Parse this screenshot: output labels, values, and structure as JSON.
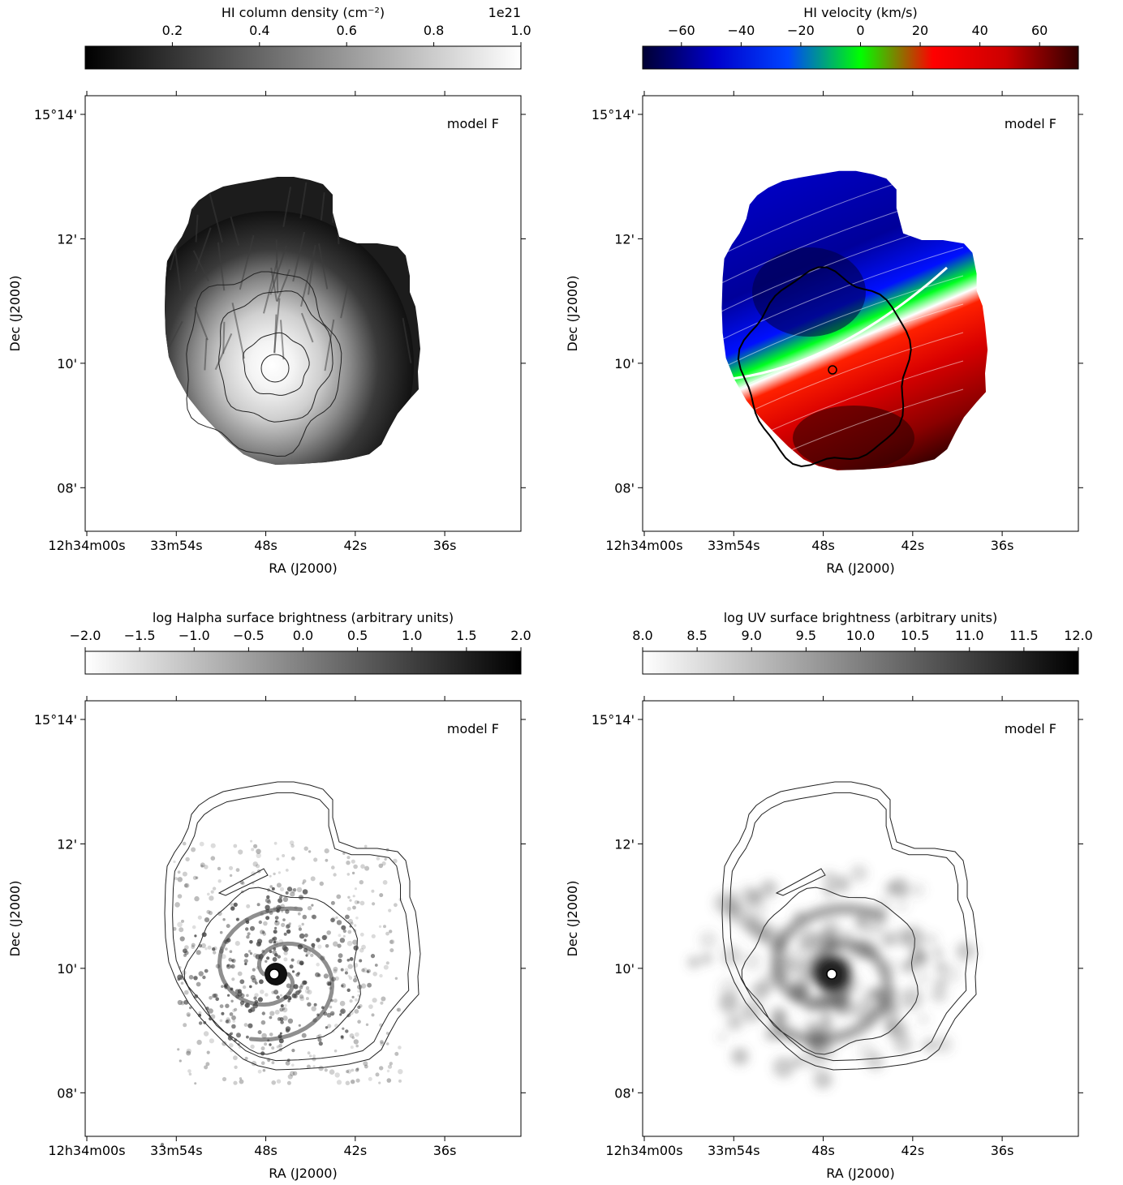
{
  "panels": [
    {
      "id": "hi-density",
      "model_label": "model F",
      "colorbar": {
        "title": "HI column density (cm⁻²)",
        "multiplier": "1e21",
        "ticks": [
          "0.2",
          "0.4",
          "0.6",
          "0.8",
          "1.0"
        ],
        "tick_values": [
          0.2,
          0.4,
          0.6,
          0.8,
          1.0
        ],
        "range": [
          0.0,
          1.0
        ],
        "cmap": "gray",
        "stops": [
          "#000000",
          "#ffffff"
        ]
      },
      "map": "density",
      "circle_marker": false
    },
    {
      "id": "hi-velocity",
      "model_label": "model F",
      "colorbar": {
        "title": "HI velocity (km/s)",
        "multiplier": "",
        "ticks": [
          "−60",
          "−40",
          "−20",
          "0",
          "20",
          "40",
          "60"
        ],
        "tick_values": [
          -60,
          -40,
          -20,
          0,
          20,
          40,
          60
        ],
        "range": [
          -73,
          73
        ],
        "cmap": "velocity",
        "stops": [
          "#000033",
          "#0000cc",
          "#0044ff",
          "#00ff00",
          "#ff0000",
          "#cc0000",
          "#330000"
        ]
      },
      "map": "velocity",
      "circle_marker": true
    },
    {
      "id": "halpha",
      "model_label": "model F",
      "colorbar": {
        "title": "log Halpha surface brightness (arbitrary units)",
        "multiplier": "",
        "ticks": [
          "−2.0",
          "−1.5",
          "−1.0",
          "−0.5",
          "0.0",
          "0.5",
          "1.0",
          "1.5",
          "2.0"
        ],
        "tick_values": [
          -2.0,
          -1.5,
          -1.0,
          -0.5,
          0.0,
          0.5,
          1.0,
          1.5,
          2.0
        ],
        "range": [
          -2.0,
          2.0
        ],
        "cmap": "gray_r",
        "stops": [
          "#ffffff",
          "#000000"
        ]
      },
      "map": "halpha",
      "circle_marker": true
    },
    {
      "id": "uv",
      "model_label": "model F",
      "colorbar": {
        "title": "log UV surface brightness (arbitrary units)",
        "multiplier": "",
        "ticks": [
          "8.0",
          "8.5",
          "9.0",
          "9.5",
          "10.0",
          "10.5",
          "11.0",
          "11.5",
          "12.0"
        ],
        "tick_values": [
          8.0,
          8.5,
          9.0,
          9.5,
          10.0,
          10.5,
          11.0,
          11.5,
          12.0
        ],
        "range": [
          8.0,
          12.0
        ],
        "cmap": "gray_r",
        "stops": [
          "#ffffff",
          "#000000"
        ]
      },
      "map": "uv",
      "circle_marker": true
    }
  ],
  "axes": {
    "xlabel": "RA (J2000)",
    "ylabel": "Dec (J2000)",
    "x_ticks": [
      "12h34m00s",
      "33m54s",
      "48s",
      "42s",
      "36s"
    ],
    "x_tick_values_sec": [
      0,
      6,
      12,
      18,
      24
    ],
    "x_range_sec": [
      0,
      29
    ],
    "y_ticks": [
      "15°14'",
      "12'",
      "10'",
      "08'"
    ],
    "y_tick_values_arcmin": [
      14,
      12,
      10,
      8
    ],
    "y_range_arcmin": [
      7.3,
      14.3
    ]
  },
  "chart_data": [
    {
      "type": "heatmap",
      "title": "",
      "annotation": "model F",
      "colorbar_label": "HI column density (cm⁻²)",
      "colorbar_multiplier": "1e21",
      "colorbar_ticks": [
        0.2,
        0.4,
        0.6,
        0.8,
        1.0
      ],
      "xlabel": "RA (J2000)",
      "ylabel": "Dec (J2000)",
      "xticks": [
        "12h34m00s",
        "33m54s",
        "48s",
        "42s",
        "36s"
      ],
      "yticks": [
        "15°14'",
        "12'",
        "10'",
        "08'"
      ],
      "contours": true
    },
    {
      "type": "heatmap",
      "title": "",
      "annotation": "model F",
      "colorbar_label": "HI velocity (km/s)",
      "colorbar_ticks": [
        -60,
        -40,
        -20,
        0,
        20,
        40,
        60
      ],
      "xlabel": "RA (J2000)",
      "ylabel": "Dec (J2000)",
      "xticks": [
        "12h34m00s",
        "33m54s",
        "48s",
        "42s",
        "36s"
      ],
      "yticks": [
        "15°14'",
        "12'",
        "10'",
        "08'"
      ],
      "contours": true
    },
    {
      "type": "heatmap",
      "title": "",
      "annotation": "model F",
      "colorbar_label": "log Halpha surface brightness (arbitrary units)",
      "colorbar_ticks": [
        -2.0,
        -1.5,
        -1.0,
        -0.5,
        0.0,
        0.5,
        1.0,
        1.5,
        2.0
      ],
      "xlabel": "RA (J2000)",
      "ylabel": "Dec (J2000)",
      "xticks": [
        "12h34m00s",
        "33m54s",
        "48s",
        "42s",
        "36s"
      ],
      "yticks": [
        "15°14'",
        "12'",
        "10'",
        "08'"
      ],
      "contours": true
    },
    {
      "type": "heatmap",
      "title": "",
      "annotation": "model F",
      "colorbar_label": "log UV surface brightness (arbitrary units)",
      "colorbar_ticks": [
        8.0,
        8.5,
        9.0,
        9.5,
        10.0,
        10.5,
        11.0,
        11.5,
        12.0
      ],
      "xlabel": "RA (J2000)",
      "ylabel": "Dec (J2000)",
      "xticks": [
        "12h34m00s",
        "33m54s",
        "48s",
        "42s",
        "36s"
      ],
      "yticks": [
        "15°14'",
        "12'",
        "10'",
        "08'"
      ],
      "contours": true
    }
  ]
}
